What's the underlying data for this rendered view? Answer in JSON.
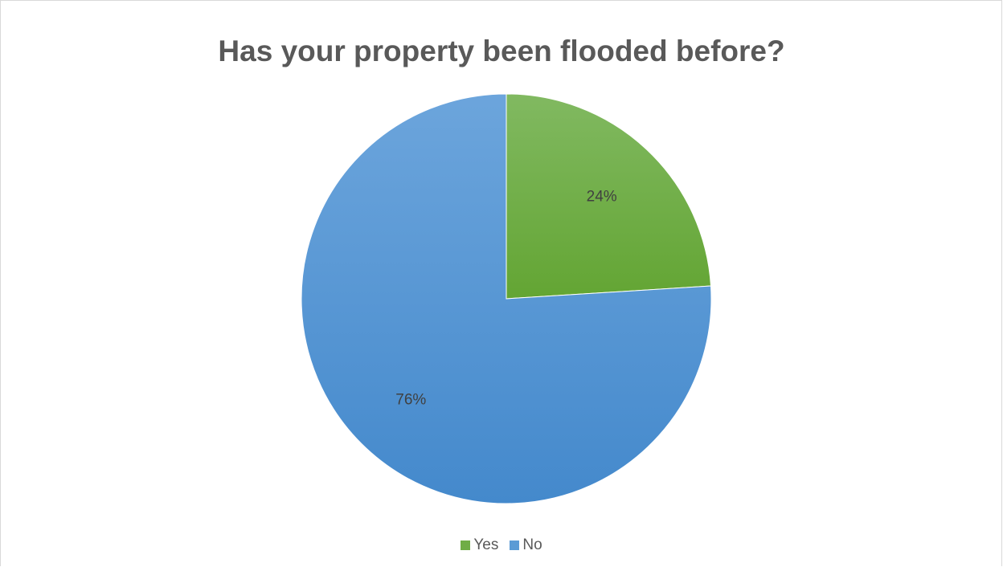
{
  "chart_data": {
    "type": "pie",
    "title": "Has your property been flooded before?",
    "categories": [
      "Yes",
      "No"
    ],
    "values": [
      24,
      76
    ],
    "data_labels": [
      "24%",
      "76%"
    ],
    "colors": [
      "#70ad47",
      "#5b9bd5"
    ],
    "start_angle_deg": 0,
    "direction": "clockwise",
    "legend_position": "bottom"
  }
}
